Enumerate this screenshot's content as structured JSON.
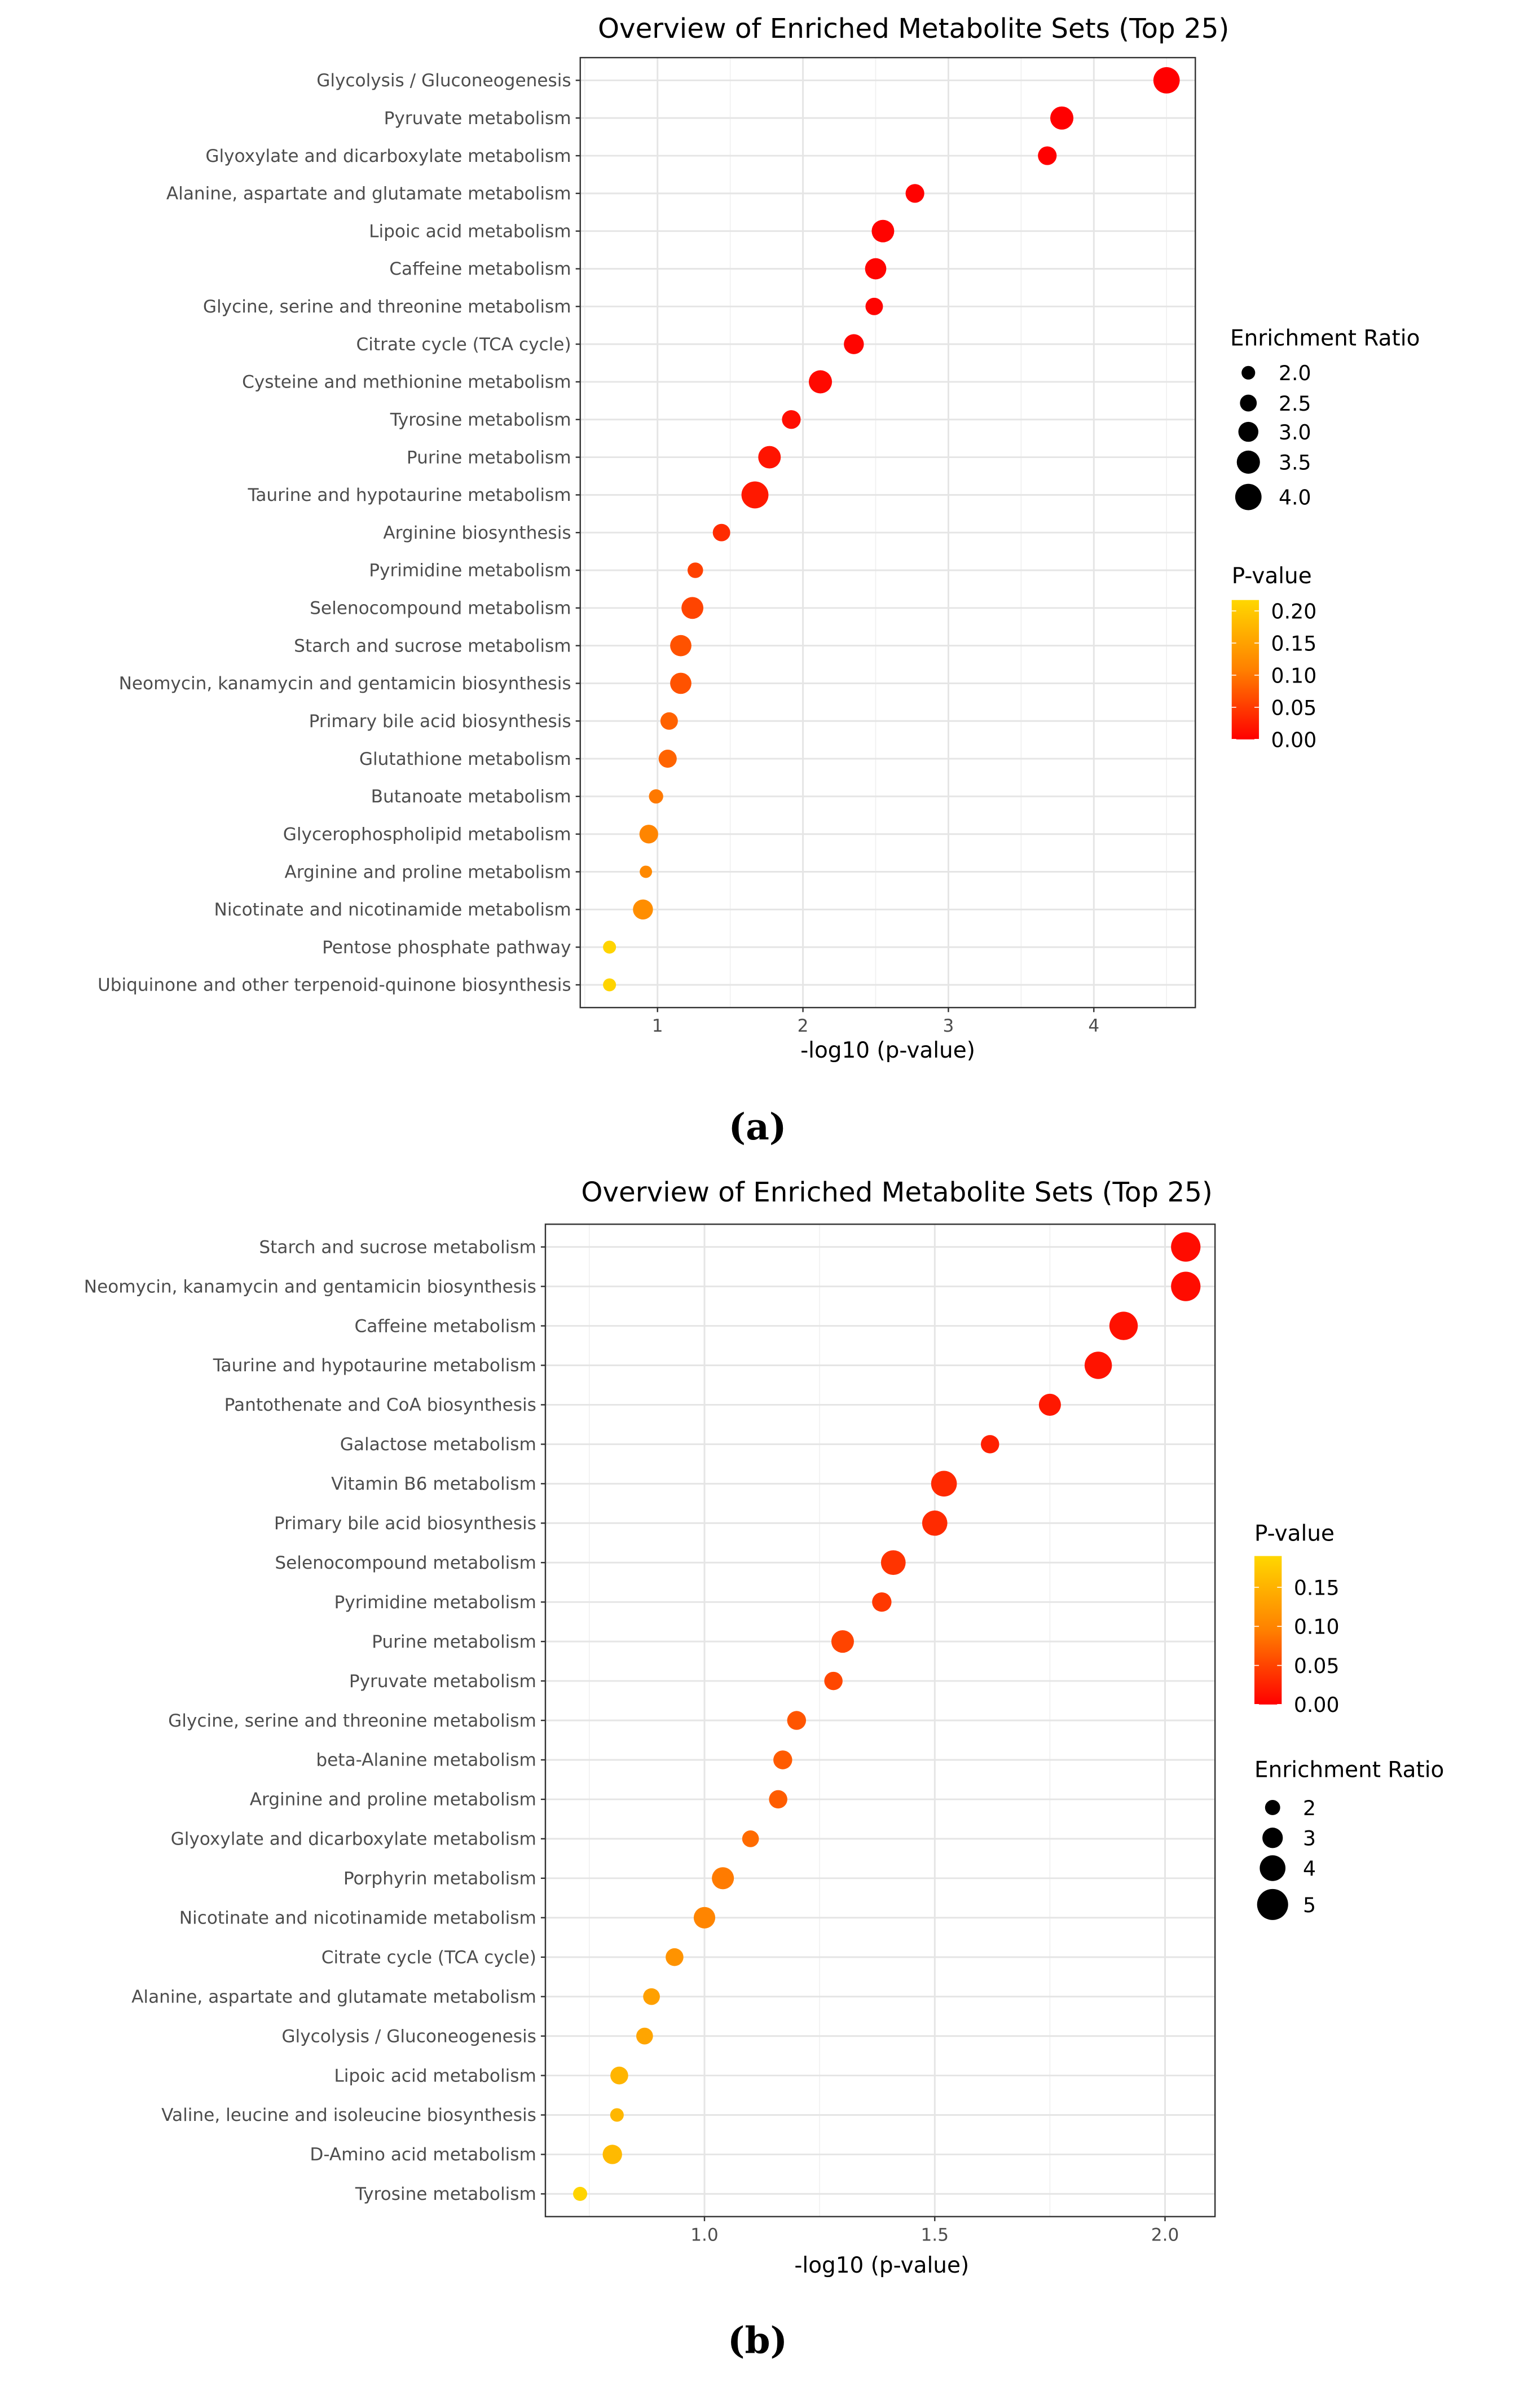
{
  "chart_data": [
    {
      "panel_label": "(a)",
      "type": "scatter",
      "title": "Overview of Enriched Metabolite Sets (Top 25)",
      "xlabel": "-log10 (p-value)",
      "ylabel": "",
      "xlim": [
        0.47,
        4.7
      ],
      "xticks": [
        1,
        2,
        3,
        4
      ],
      "xtick_labels": [
        "1",
        "2",
        "3",
        "4"
      ],
      "grid": true,
      "size_legend": {
        "title": "Enrichment Ratio",
        "values": [
          2.0,
          2.5,
          3.0,
          3.5,
          4.0
        ],
        "labels": [
          "2.0",
          "2.5",
          "3.0",
          "3.5",
          "4.0"
        ]
      },
      "color_legend": {
        "title": "P-value",
        "range": [
          0,
          0.217
        ],
        "values": [
          0.2,
          0.15,
          0.1,
          0.05,
          0.0
        ],
        "labels": [
          "0.20",
          "0.15",
          "0.10",
          "0.05",
          "0.00"
        ],
        "colors": [
          "#ff0000",
          "#ff8000",
          "#ffd700"
        ]
      },
      "legend_order": [
        "size",
        "color"
      ],
      "categories": [
        "Glycolysis / Gluconeogenesis",
        "Pyruvate metabolism",
        "Glyoxylate and dicarboxylate metabolism",
        "Alanine, aspartate and glutamate metabolism",
        "Lipoic acid metabolism",
        "Caffeine metabolism",
        "Glycine, serine and threonine metabolism",
        "Citrate cycle (TCA cycle)",
        "Cysteine and methionine metabolism",
        "Tyrosine metabolism",
        "Purine metabolism",
        "Taurine and hypotaurine metabolism",
        "Arginine biosynthesis",
        "Pyrimidine metabolism",
        "Selenocompound metabolism",
        "Starch and sucrose metabolism",
        "Neomycin, kanamycin and gentamicin biosynthesis",
        "Primary bile acid biosynthesis",
        "Glutathione metabolism",
        "Butanoate metabolism",
        "Glycerophospholipid metabolism",
        "Arginine and proline metabolism",
        "Nicotinate and nicotinamide metabolism",
        "Pentose phosphate pathway",
        "Ubiquinone and other terpenoid-quinone biosynthesis"
      ],
      "x": [
        4.5,
        3.78,
        3.68,
        2.77,
        2.55,
        2.5,
        2.49,
        2.35,
        2.12,
        1.92,
        1.77,
        1.67,
        1.44,
        1.26,
        1.24,
        1.16,
        1.16,
        1.08,
        1.07,
        0.99,
        0.94,
        0.92,
        0.9,
        0.67,
        0.67
      ],
      "enrichment_ratio": [
        4.0,
        3.5,
        2.8,
        2.8,
        3.4,
        3.2,
        2.6,
        3.0,
        3.5,
        2.8,
        3.4,
        4.1,
        2.6,
        2.3,
        3.3,
        3.2,
        3.2,
        2.6,
        2.7,
        2.1,
        2.8,
        1.8,
        3.0,
        1.9,
        1.9
      ]
    },
    {
      "panel_label": "(b)",
      "type": "scatter",
      "title": "Overview of Enriched Metabolite Sets (Top 25)",
      "xlabel": "-log10 (p-value)",
      "ylabel": "",
      "xlim": [
        0.655,
        2.11
      ],
      "xticks": [
        1.0,
        1.5,
        2.0
      ],
      "xtick_labels": [
        "1.0",
        "1.5",
        "2.0"
      ],
      "grid": true,
      "size_legend": {
        "title": "Enrichment Ratio",
        "values": [
          2,
          3,
          4,
          5
        ],
        "labels": [
          "2",
          "3",
          "4",
          "5"
        ]
      },
      "color_legend": {
        "title": "P-value",
        "range": [
          0,
          0.19
        ],
        "values": [
          0.15,
          0.1,
          0.05,
          0.0
        ],
        "labels": [
          "0.15",
          "0.10",
          "0.05",
          "0.00"
        ],
        "colors": [
          "#ff0000",
          "#ff8000",
          "#ffd700"
        ]
      },
      "legend_order": [
        "color",
        "size"
      ],
      "categories": [
        "Starch and sucrose metabolism",
        "Neomycin, kanamycin and gentamicin biosynthesis",
        "Caffeine metabolism",
        "Taurine and hypotaurine metabolism",
        "Pantothenate and CoA biosynthesis",
        "Galactose metabolism",
        "Vitamin B6 metabolism",
        "Primary bile acid biosynthesis",
        "Selenocompound metabolism",
        "Pyrimidine metabolism",
        "Purine metabolism",
        "Pyruvate metabolism",
        "Glycine, serine and threonine metabolism",
        "beta-Alanine metabolism",
        "Arginine and proline metabolism",
        "Glyoxylate and dicarboxylate metabolism",
        "Porphyrin metabolism",
        "Nicotinate and nicotinamide metabolism",
        "Citrate cycle (TCA cycle)",
        "Alanine, aspartate and glutamate metabolism",
        "Glycolysis / Gluconeogenesis",
        "Lipoic acid metabolism",
        "Valine, leucine and isoleucine biosynthesis",
        "D-Amino acid metabolism",
        "Tyrosine metabolism"
      ],
      "x": [
        2.045,
        2.045,
        1.91,
        1.855,
        1.75,
        1.62,
        1.52,
        1.5,
        1.41,
        1.385,
        1.3,
        1.28,
        1.2,
        1.17,
        1.16,
        1.1,
        1.04,
        1.0,
        0.935,
        0.885,
        0.87,
        0.815,
        0.81,
        0.8,
        0.73
      ],
      "enrichment_ratio": [
        4.7,
        4.7,
        4.5,
        4.3,
        3.3,
        2.6,
        4.0,
        3.9,
        3.8,
        2.8,
        3.4,
        2.6,
        2.7,
        2.7,
        2.6,
        2.3,
        3.3,
        3.2,
        2.5,
        2.3,
        2.3,
        2.5,
        1.7,
        2.8,
        1.8
      ]
    }
  ]
}
